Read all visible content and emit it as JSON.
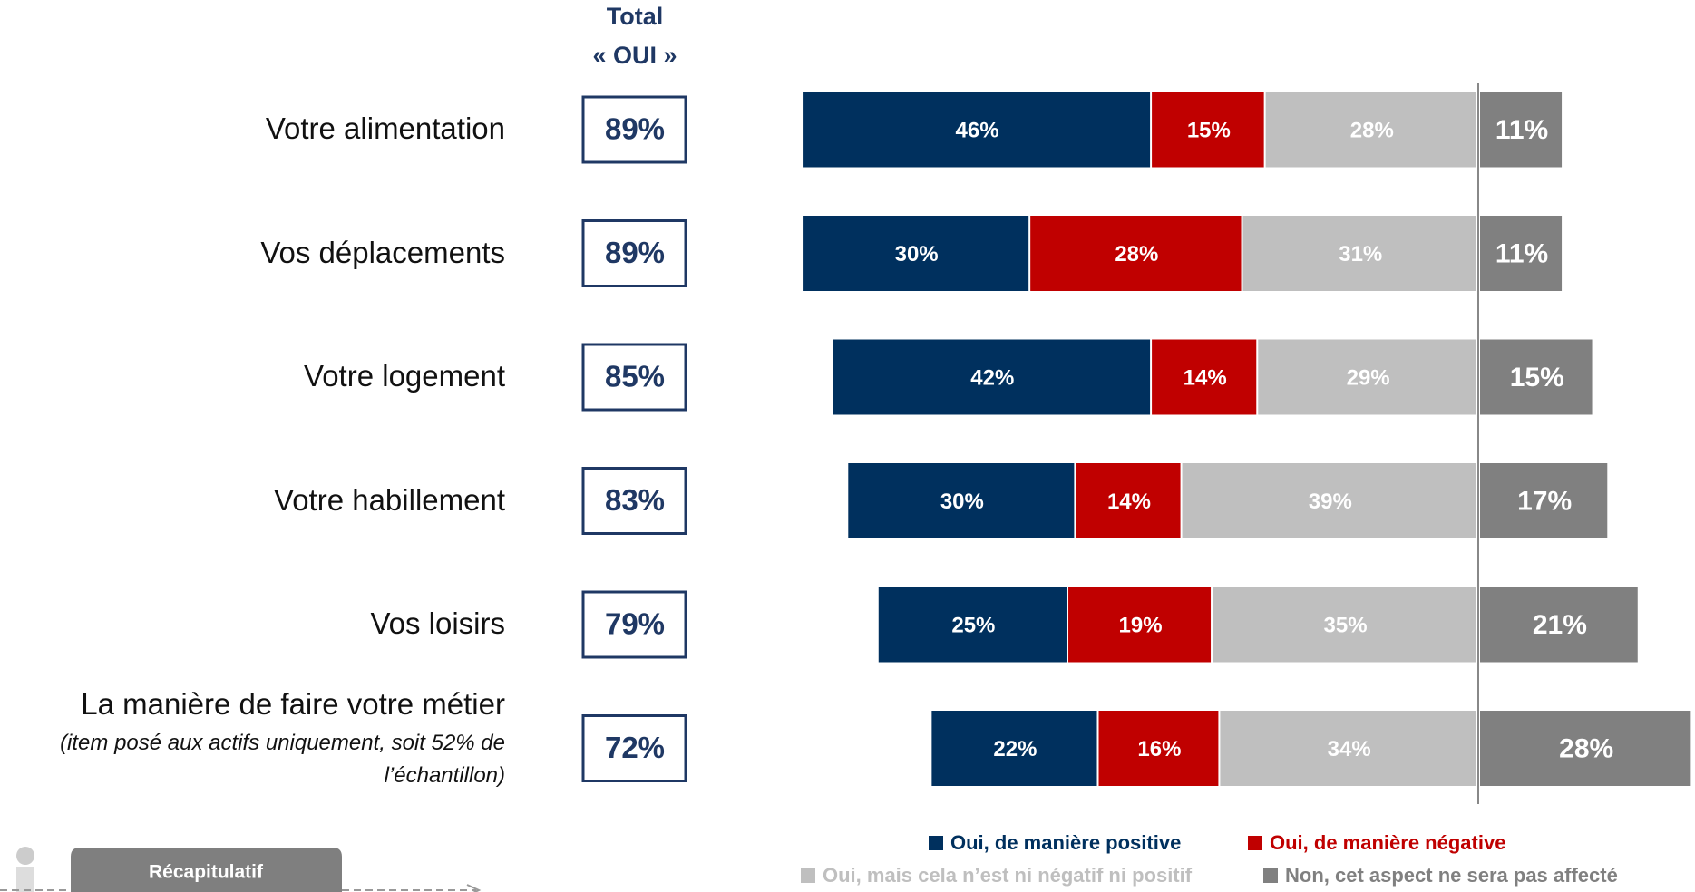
{
  "chart_data": {
    "type": "bar",
    "stacked": true,
    "total_header": [
      "Total",
      "« OUI »"
    ],
    "categories": [
      "Votre alimentation",
      "Vos déplacements",
      "Votre logement",
      "Votre habillement",
      "Vos loisirs",
      "La manière de faire votre métier"
    ],
    "category_notes": [
      null,
      null,
      null,
      null,
      null,
      "(item posé aux actifs uniquement, soit 52% de l’échantillon)"
    ],
    "totals": {
      "values": [
        89,
        89,
        85,
        83,
        79,
        72
      ],
      "value_labels": [
        "89%",
        "89%",
        "85%",
        "83%",
        "79%",
        "72%"
      ],
      "color": "#1f3864"
    },
    "series": [
      {
        "name": "Oui, de manière positive",
        "color": "#00305e",
        "side": "left",
        "values": [
          46,
          30,
          42,
          30,
          25,
          22
        ],
        "value_labels": [
          "46%",
          "30%",
          "42%",
          "30%",
          "25%",
          "22%"
        ]
      },
      {
        "name": "Oui, de manière négative",
        "color": "#c00000",
        "side": "left",
        "values": [
          15,
          28,
          14,
          14,
          19,
          16
        ],
        "value_labels": [
          "15%",
          "28%",
          "14%",
          "14%",
          "19%",
          "16%"
        ]
      },
      {
        "name": "Oui, mais cela n’est ni négatif ni positif",
        "color": "#bfbfbf",
        "side": "left",
        "values": [
          28,
          31,
          29,
          39,
          35,
          34
        ],
        "value_labels": [
          "28%",
          "31%",
          "29%",
          "39%",
          "35%",
          "34%"
        ]
      },
      {
        "name": "Non, cet aspect ne sera pas affecté",
        "color": "#808080",
        "side": "right",
        "values": [
          11,
          11,
          15,
          17,
          21,
          28
        ],
        "value_labels": [
          "11%",
          "11%",
          "15%",
          "17%",
          "21%",
          "28%"
        ]
      }
    ],
    "button": "Récapitulatif"
  }
}
